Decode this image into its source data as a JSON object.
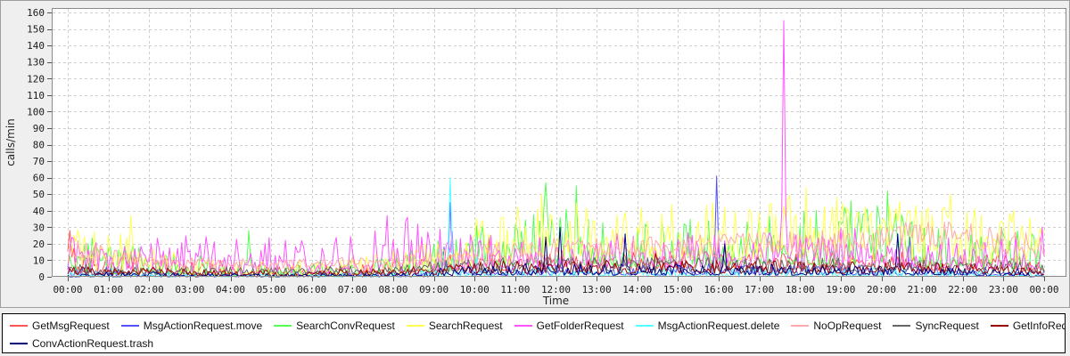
{
  "chart_data": {
    "type": "line",
    "title": "",
    "xlabel": "Time",
    "ylabel": "calls/min",
    "ylim": [
      0,
      160
    ],
    "y_ticks": [
      0,
      10,
      20,
      30,
      40,
      50,
      60,
      70,
      80,
      90,
      100,
      110,
      120,
      130,
      140,
      150,
      160
    ],
    "x_ticks": [
      "00:00",
      "01:00",
      "02:00",
      "03:00",
      "04:00",
      "05:00",
      "06:00",
      "07:00",
      "08:00",
      "09:00",
      "10:00",
      "11:00",
      "12:00",
      "13:00",
      "14:00",
      "15:00",
      "16:00",
      "17:00",
      "18:00",
      "19:00",
      "20:00",
      "21:00",
      "22:00",
      "23:00",
      "00:00"
    ],
    "x_range_minutes": [
      0,
      1440
    ],
    "grid": true,
    "grid_style": "dashed",
    "legend_position": "bottom",
    "legend_rows": [
      9,
      1
    ],
    "colors": {
      "plot_background": "#ffffff",
      "panel_background": "#efefef",
      "grid": "#cfcfcf",
      "frame": "#8a8a8a",
      "legend_border": "#000000"
    },
    "series": [
      {
        "name": "GetMsgRequest",
        "color": "#ff5454",
        "bias": 1.8,
        "hourly_envelope_lo": [
          2,
          2,
          2,
          1,
          1,
          1,
          1,
          1,
          2,
          3,
          4,
          4,
          5,
          5,
          4,
          5,
          5,
          5,
          5,
          4,
          5,
          4,
          4,
          4,
          3
        ],
        "hourly_envelope_hi": [
          22,
          16,
          14,
          12,
          8,
          7,
          7,
          8,
          10,
          13,
          15,
          16,
          17,
          16,
          16,
          17,
          16,
          17,
          16,
          16,
          16,
          15,
          14,
          14,
          12
        ],
        "spikes": [
          [
            4,
            28
          ],
          [
            620,
            24
          ]
        ]
      },
      {
        "name": "MsgActionRequest.move",
        "color": "#5454ff",
        "bias": 2.0,
        "hourly_envelope_lo": [
          0,
          0,
          0,
          0,
          0,
          0,
          0,
          0,
          0,
          0,
          1,
          1,
          1,
          1,
          1,
          1,
          1,
          1,
          1,
          1,
          1,
          1,
          1,
          1,
          0
        ],
        "hourly_envelope_hi": [
          8,
          6,
          5,
          4,
          3,
          3,
          3,
          3,
          4,
          6,
          7,
          7,
          8,
          7,
          7,
          8,
          8,
          7,
          8,
          7,
          8,
          7,
          6,
          6,
          5
        ],
        "spikes": [
          [
            556,
            18
          ],
          [
            565,
            45
          ],
          [
            956,
            61
          ],
          [
            1242,
            24
          ]
        ]
      },
      {
        "name": "SearchConvRequest",
        "color": "#54ff54",
        "bias": 2.0,
        "hourly_envelope_lo": [
          2,
          2,
          1,
          1,
          0,
          0,
          0,
          0,
          1,
          2,
          5,
          6,
          8,
          7,
          6,
          7,
          7,
          8,
          7,
          7,
          8,
          6,
          5,
          5,
          4
        ],
        "hourly_envelope_hi": [
          26,
          22,
          18,
          14,
          10,
          9,
          10,
          10,
          12,
          22,
          32,
          38,
          42,
          38,
          36,
          40,
          38,
          42,
          40,
          42,
          44,
          36,
          32,
          30,
          25
        ],
        "spikes": [
          [
            268,
            28
          ],
          [
            704,
            57
          ],
          [
            750,
            55
          ],
          [
            1155,
            46
          ],
          [
            1210,
            52
          ]
        ]
      },
      {
        "name": "SearchRequest",
        "color": "#ffff54",
        "bias": 1.6,
        "hourly_envelope_lo": [
          3,
          3,
          2,
          1,
          1,
          1,
          1,
          1,
          2,
          3,
          6,
          8,
          10,
          9,
          9,
          10,
          10,
          10,
          10,
          9,
          10,
          9,
          8,
          8,
          6
        ],
        "hourly_envelope_hi": [
          28,
          32,
          22,
          15,
          10,
          9,
          10,
          12,
          16,
          28,
          36,
          44,
          48,
          46,
          44,
          48,
          46,
          50,
          50,
          48,
          48,
          44,
          42,
          42,
          35
        ],
        "spikes": [
          [
            92,
            37
          ],
          [
            698,
            50
          ],
          [
            1088,
            54
          ],
          [
            1302,
            50
          ]
        ]
      },
      {
        "name": "GetFolderRequest",
        "color": "#ff54ff",
        "bias": 2.4,
        "hourly_envelope_lo": [
          4,
          4,
          4,
          3,
          2,
          2,
          2,
          2,
          3,
          3,
          5,
          6,
          6,
          6,
          6,
          6,
          6,
          6,
          6,
          6,
          6,
          6,
          5,
          5,
          5
        ],
        "hourly_envelope_hi": [
          24,
          28,
          30,
          26,
          24,
          26,
          22,
          30,
          37,
          30,
          26,
          28,
          28,
          26,
          28,
          30,
          28,
          28,
          28,
          30,
          28,
          26,
          24,
          26,
          30
        ],
        "spikes": [
          [
            470,
            37
          ],
          [
            500,
            36
          ],
          [
            1056,
            155
          ],
          [
            1436,
            30
          ]
        ]
      },
      {
        "name": "MsgActionRequest.delete",
        "color": "#54ffff",
        "bias": 2.0,
        "hourly_envelope_lo": [
          0,
          0,
          0,
          0,
          0,
          0,
          0,
          0,
          0,
          0,
          0,
          0,
          0,
          0,
          0,
          0,
          0,
          0,
          0,
          0,
          0,
          0,
          0,
          0,
          0
        ],
        "hourly_envelope_hi": [
          4,
          3,
          3,
          2,
          2,
          2,
          2,
          2,
          3,
          5,
          6,
          6,
          6,
          5,
          5,
          6,
          6,
          5,
          6,
          5,
          6,
          5,
          4,
          4,
          3
        ],
        "spikes": [
          [
            565,
            60
          ],
          [
            602,
            12
          ]
        ]
      },
      {
        "name": "NoOpRequest",
        "color": "#ffaaaa",
        "bias": 1.0,
        "hourly_envelope_lo": [
          10,
          6,
          6,
          5,
          5,
          5,
          5,
          5,
          5,
          6,
          8,
          10,
          10,
          11,
          11,
          12,
          12,
          13,
          13,
          14,
          15,
          16,
          16,
          13,
          10
        ],
        "hourly_envelope_hi": [
          26,
          18,
          14,
          12,
          11,
          11,
          11,
          12,
          12,
          16,
          20,
          22,
          24,
          24,
          25,
          26,
          26,
          28,
          28,
          30,
          32,
          34,
          34,
          30,
          24
        ],
        "spikes": []
      },
      {
        "name": "SyncRequest",
        "color": "#666666",
        "bias": 1.4,
        "hourly_envelope_lo": [
          1,
          1,
          1,
          1,
          1,
          1,
          1,
          1,
          2,
          2,
          3,
          3,
          3,
          3,
          3,
          3,
          3,
          3,
          3,
          3,
          3,
          3,
          3,
          2,
          2
        ],
        "hourly_envelope_hi": [
          8,
          7,
          6,
          6,
          6,
          6,
          6,
          7,
          8,
          10,
          11,
          12,
          12,
          12,
          12,
          12,
          12,
          12,
          12,
          12,
          12,
          11,
          10,
          10,
          8
        ],
        "spikes": []
      },
      {
        "name": "GetInfoRequest",
        "color": "#990000",
        "bias": 1.6,
        "hourly_envelope_lo": [
          1,
          1,
          1,
          0,
          0,
          0,
          0,
          0,
          1,
          1,
          2,
          2,
          2,
          2,
          2,
          2,
          2,
          2,
          2,
          2,
          2,
          2,
          2,
          1,
          1
        ],
        "hourly_envelope_hi": [
          7,
          6,
          6,
          5,
          4,
          4,
          4,
          5,
          6,
          8,
          9,
          10,
          10,
          10,
          10,
          10,
          10,
          10,
          10,
          10,
          9,
          9,
          8,
          8,
          7
        ],
        "spikes": [
          [
            868,
            14
          ]
        ]
      },
      {
        "name": "ConvActionRequest.trash",
        "color": "#000080",
        "bias": 2.0,
        "hourly_envelope_lo": [
          0,
          0,
          0,
          0,
          0,
          0,
          0,
          0,
          0,
          0,
          1,
          1,
          1,
          1,
          1,
          1,
          1,
          1,
          1,
          1,
          1,
          1,
          1,
          0,
          0
        ],
        "hourly_envelope_hi": [
          4,
          3,
          3,
          2,
          2,
          2,
          2,
          2,
          3,
          5,
          7,
          8,
          8,
          8,
          8,
          8,
          8,
          8,
          8,
          8,
          7,
          7,
          6,
          6,
          5
        ],
        "spikes": [
          [
            706,
            24
          ],
          [
            725,
            30
          ],
          [
            822,
            26
          ],
          [
            968,
            20
          ],
          [
            1223,
            26
          ]
        ]
      }
    ]
  }
}
